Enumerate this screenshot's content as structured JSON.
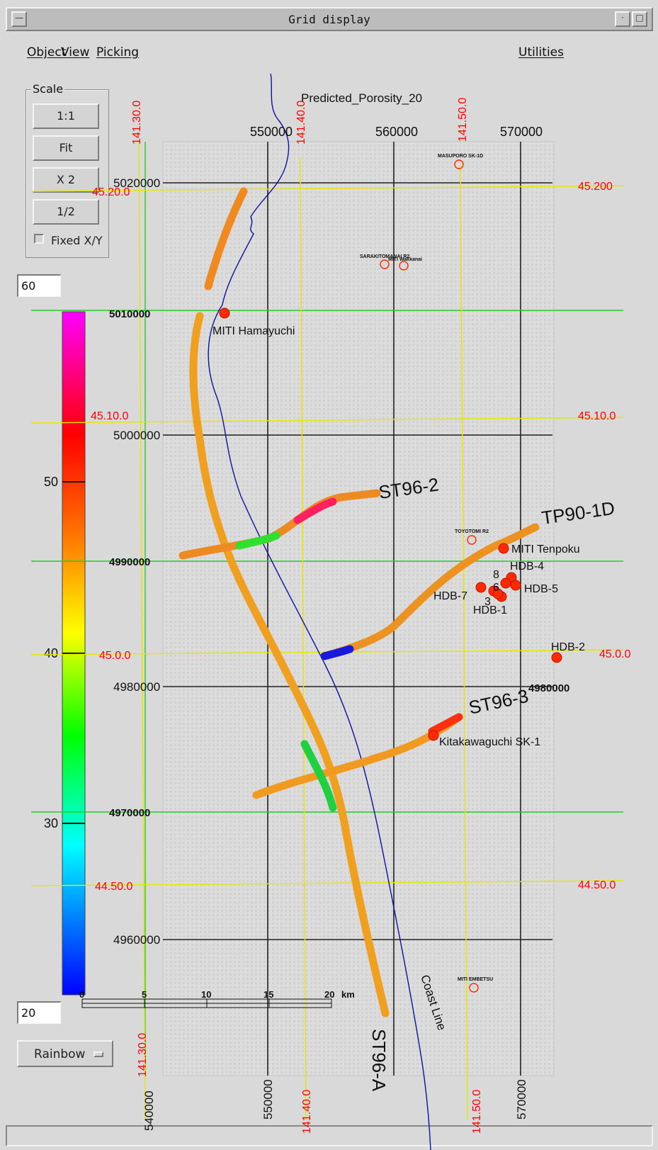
{
  "window": {
    "title": "Grid display"
  },
  "menu": {
    "object": "Object",
    "view": "View",
    "picking": "Picking",
    "utilities": "Utilities"
  },
  "scale_panel": {
    "legend": "Scale",
    "buttons": [
      "1:1",
      "Fit",
      "X 2",
      "1/2"
    ],
    "fixed_xy_label": "Fixed X/Y",
    "fixed_xy_checked": false
  },
  "colorbar": {
    "max_value": "60",
    "min_value": "20",
    "tick_labels": [
      "50",
      "40",
      "30"
    ],
    "palette_button": "Rainbow",
    "palette_colors": [
      "#ff00ff",
      "#ff0000",
      "#ff8000",
      "#ffff00",
      "#00ff00",
      "#00ffff",
      "#0000ff"
    ]
  },
  "map": {
    "title": "Predicted_Porosity_20",
    "x_axis_labels": [
      "550000",
      "560000",
      "570000"
    ],
    "x_axis_bottom_labels": [
      "540000",
      "550000",
      "570000"
    ],
    "y_axis_labels": [
      "5020000",
      "5010000",
      "5000000",
      "4990000",
      "4980000",
      "4970000",
      "4960000"
    ],
    "longitude_labels_top": [
      "141.30.0",
      "141.40.0",
      "141.50.0"
    ],
    "longitude_labels_bottom": [
      "141.30.0",
      "141.40.0",
      "141.50.0"
    ],
    "latitude_labels_left": [
      "45.20.0",
      "45.10.0",
      "45.0.0",
      "44.50.0"
    ],
    "latitude_labels_right": [
      "45.200",
      "45.10.0",
      "45.0.0",
      "44.50.0"
    ],
    "right_extra_label": "4980000",
    "coast_line_label": "Coast Line",
    "seismic_lines": [
      "ST96-2",
      "TP90-1D",
      "ST96-3",
      "ST96-A"
    ],
    "wells_major": [
      "MITI Hamayuchi",
      "MITI Tenpoku",
      "Kitakawaguchi SK-1",
      "HDB-4",
      "HDB-5",
      "HDB-7",
      "HDB-1",
      "HDB-2"
    ],
    "well_numbers": [
      "8",
      "6",
      "3"
    ],
    "wells_minor": [
      "MASUPORO SK-1D",
      "SARAKITOMANAI R2",
      "MITI Wakkanai",
      "TOYOTOMI R2",
      "MITI EMBETSU"
    ],
    "scalebar": {
      "ticks": [
        "0",
        "5",
        "10",
        "15",
        "20"
      ],
      "unit": "km"
    },
    "colors": {
      "utm_grid": "#202020",
      "graticule": "#e6e600",
      "green_grid": "#22d022",
      "coastline": "#1010a0",
      "label_red": "#ff0000",
      "well_fill": "#ff2a00"
    }
  }
}
